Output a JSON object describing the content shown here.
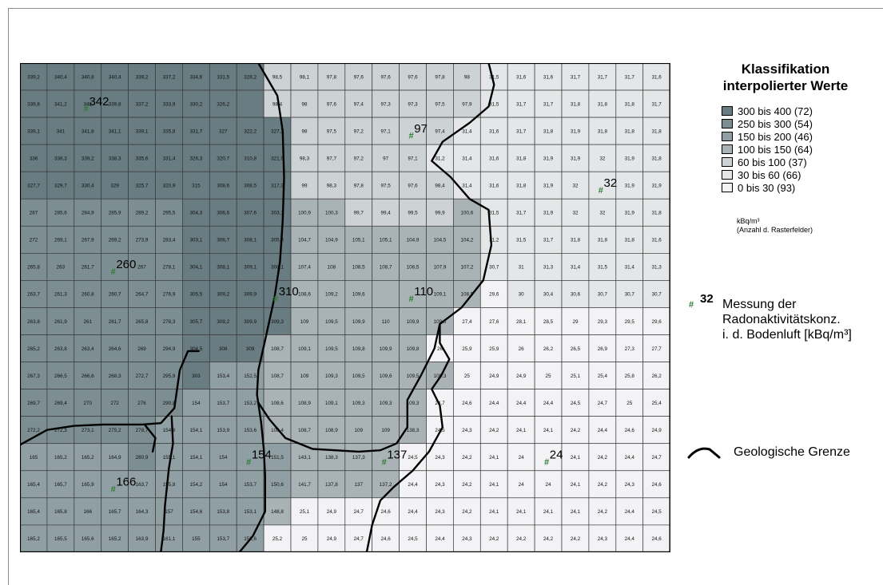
{
  "grid": {
    "values": [
      [
        "339,2",
        "340,4",
        "340,8",
        "340,4",
        "339,2",
        "337,2",
        "334,6",
        "331,5",
        "328,2",
        "98,5",
        "98,1",
        "97,8",
        "97,6",
        "97,6",
        "97,6",
        "97,8",
        "98",
        "31,5",
        "31,6",
        "31,6",
        "31,7",
        "31,7",
        "31,7",
        "31,6"
      ],
      [
        "339,8",
        "341,2",
        "342",
        "339,8",
        "337,2",
        "333,9",
        "330,2",
        "326,2",
        "",
        "98,4",
        "98",
        "97,6",
        "97,4",
        "97,3",
        "97,3",
        "97,5",
        "97,9",
        "31,5",
        "31,7",
        "31,7",
        "31,8",
        "31,8",
        "31,8",
        "31,7"
      ],
      [
        "339,1",
        "341",
        "341,8",
        "341,1",
        "339,1",
        "335,8",
        "331,7",
        "327",
        "322,2",
        "327,2",
        "98",
        "97,5",
        "97,2",
        "97,1",
        "",
        "97,4",
        "31,4",
        "31,6",
        "31,7",
        "31,8",
        "31,9",
        "31,8",
        "31,8",
        "31,8"
      ],
      [
        "336",
        "338,3",
        "339,2",
        "338,3",
        "335,6",
        "331,4",
        "326,3",
        "320,7",
        "310,8",
        "321,9",
        "98,3",
        "97,7",
        "97,2",
        "97",
        "97,1",
        "31,2",
        "31,4",
        "31,6",
        "31,8",
        "31,9",
        "31,9",
        "32",
        "31,9",
        "31,8"
      ],
      [
        "327,7",
        "329,7",
        "330,4",
        "329",
        "325,7",
        "320,9",
        "315",
        "308,6",
        "308,5",
        "317,3",
        "99",
        "98,3",
        "97,8",
        "97,5",
        "97,6",
        "98,4",
        "31,4",
        "31,6",
        "31,8",
        "31,9",
        "32",
        "",
        "31,9",
        "31,9"
      ],
      [
        "287",
        "285,6",
        "284,9",
        "285,9",
        "289,2",
        "295,5",
        "304,3",
        "306,6",
        "307,6",
        "303,1",
        "100,9",
        "100,3",
        "99,7",
        "99,4",
        "99,5",
        "99,9",
        "100,6",
        "31,5",
        "31,7",
        "31,9",
        "32",
        "32",
        "31,9",
        "31,8"
      ],
      [
        "272",
        "269,1",
        "267,9",
        "269,2",
        "273,9",
        "283,4",
        "303,1",
        "306,7",
        "308,1",
        "305,8",
        "104,7",
        "104,9",
        "105,1",
        "105,1",
        "104,9",
        "104,5",
        "104,2",
        "31,2",
        "31,5",
        "31,7",
        "31,8",
        "31,8",
        "31,8",
        "31,6"
      ],
      [
        "265,8",
        "263",
        "261,7",
        "",
        "267",
        "278,1",
        "304,1",
        "308,1",
        "309,1",
        "308,1",
        "107,4",
        "108",
        "108,5",
        "108,7",
        "108,5",
        "107,9",
        "107,2",
        "30,7",
        "31",
        "31,3",
        "31,4",
        "31,5",
        "31,4",
        "31,3"
      ],
      [
        "263,7",
        "261,3",
        "260,8",
        "260,7",
        "264,7",
        "276,9",
        "305,5",
        "309,2",
        "309,9",
        "",
        "108,6",
        "109,2",
        "109,6",
        "",
        "",
        "109,1",
        "108,5",
        "29,6",
        "30",
        "30,4",
        "30,6",
        "30,7",
        "30,7",
        "30,7"
      ],
      [
        "263,8",
        "261,9",
        "261",
        "261,7",
        "265,8",
        "278,3",
        "305,7",
        "309,2",
        "309,9",
        "309,3",
        "109",
        "109,5",
        "109,9",
        "110",
        "109,9",
        "109,5",
        "27,4",
        "27,6",
        "28,1",
        "28,5",
        "29",
        "29,3",
        "29,5",
        "29,6"
      ],
      [
        "265,2",
        "263,8",
        "263,4",
        "264,6",
        "269",
        "294,9",
        "304,5",
        "308",
        "309",
        "108,7",
        "109,1",
        "109,5",
        "109,8",
        "109,9",
        "109,8",
        "26",
        "25,9",
        "25,9",
        "26",
        "26,2",
        "26,5",
        "26,9",
        "27,3",
        "27,7"
      ],
      [
        "267,3",
        "266,5",
        "266,6",
        "268,3",
        "272,7",
        "295,9",
        "303",
        "153,4",
        "152,5",
        "108,7",
        "109",
        "109,3",
        "109,5",
        "109,6",
        "109,5",
        "109,3",
        "25",
        "24,9",
        "24,9",
        "25",
        "25,1",
        "25,4",
        "25,8",
        "26,2"
      ],
      [
        "269,7",
        "269,4",
        "270",
        "272",
        "276",
        "290,8",
        "154",
        "153,7",
        "153,2",
        "108,6",
        "108,9",
        "109,1",
        "109,3",
        "109,3",
        "109,3",
        "24,7",
        "24,6",
        "24,4",
        "24,4",
        "24,4",
        "24,5",
        "24,7",
        "25",
        "25,4"
      ],
      [
        "272,2",
        "272,3",
        "273,1",
        "275,2",
        "278,7",
        "154,8",
        "154,1",
        "153,9",
        "153,6",
        "108,4",
        "108,7",
        "108,9",
        "109",
        "109",
        "138,3",
        "24,5",
        "24,3",
        "24,2",
        "24,1",
        "24,1",
        "24,2",
        "24,4",
        "24,6",
        "24,9"
      ],
      [
        "165",
        "165,2",
        "165,2",
        "164,9",
        "280,9",
        "155,1",
        "154,1",
        "154",
        "",
        "151,5",
        "143,1",
        "138,3",
        "137,3",
        "",
        "24,5",
        "24,3",
        "24,2",
        "24,1",
        "24",
        "",
        "24,1",
        "24,2",
        "24,4",
        "24,7"
      ],
      [
        "165,4",
        "165,7",
        "165,9",
        "",
        "163,7",
        "155,8",
        "154,2",
        "154",
        "153,7",
        "150,6",
        "141,7",
        "137,8",
        "137",
        "137,2",
        "24,4",
        "24,3",
        "24,2",
        "24,1",
        "24",
        "24",
        "24,1",
        "24,2",
        "24,3",
        "24,6"
      ],
      [
        "165,4",
        "165,8",
        "166",
        "165,7",
        "164,3",
        "157",
        "154,6",
        "153,8",
        "153,1",
        "148,8",
        "25,1",
        "24,9",
        "24,7",
        "24,6",
        "24,4",
        "24,3",
        "24,2",
        "24,1",
        "24,1",
        "24,1",
        "24,1",
        "24,2",
        "24,4",
        "24,5"
      ],
      [
        "165,2",
        "165,5",
        "165,6",
        "165,2",
        "163,9",
        "161,1",
        "155",
        "153,7",
        "152,6",
        "25,2",
        "25",
        "24,9",
        "24,7",
        "24,6",
        "24,5",
        "24,4",
        "24,3",
        "24,2",
        "24,2",
        "24,2",
        "24,2",
        "24,3",
        "24,4",
        "24,6"
      ]
    ],
    "measurements": [
      {
        "value": "342",
        "row": 1,
        "col": 2
      },
      {
        "value": "97",
        "row": 2,
        "col": 14
      },
      {
        "value": "32",
        "row": 4,
        "col": 21
      },
      {
        "value": "260",
        "row": 7,
        "col": 3
      },
      {
        "value": "310",
        "row": 8,
        "col": 9
      },
      {
        "value": "110",
        "row": 8,
        "col": 14
      },
      {
        "value": "154",
        "row": 14,
        "col": 8
      },
      {
        "value": "137",
        "row": 14,
        "col": 13
      },
      {
        "value": "24",
        "row": 14,
        "col": 19
      },
      {
        "value": "166",
        "row": 15,
        "col": 3
      }
    ],
    "classes": [
      {
        "min": 300,
        "max": 400,
        "color": "#687c81"
      },
      {
        "min": 250,
        "max": 300,
        "color": "#7c8e92"
      },
      {
        "min": 150,
        "max": 200,
        "color": "#909fa3"
      },
      {
        "min": 100,
        "max": 150,
        "color": "#a9b3b6"
      },
      {
        "min": 60,
        "max": 100,
        "color": "#cdd3d5"
      },
      {
        "min": 30,
        "max": 60,
        "color": "#e4e6e8"
      },
      {
        "min": 0,
        "max": 30,
        "color": "#f3f3f5"
      }
    ],
    "marker_color": "#2e7d32"
  },
  "legend": {
    "title_line1": "Klassifikation",
    "title_line2": "interpolierter Werte",
    "items": [
      {
        "label": "300 bis 400  (72)",
        "color": "#687c81"
      },
      {
        "label": "250 bis 300  (54)",
        "color": "#7c8e92"
      },
      {
        "label": "150 bis 200  (46)",
        "color": "#909fa3"
      },
      {
        "label": "100 bis 150  (64)",
        "color": "#a9b3b6"
      },
      {
        "label": "60 bis 100  (37)",
        "color": "#cdd3d5"
      },
      {
        "label": "30 bis  60  (66)",
        "color": "#e4e6e8"
      },
      {
        "label": "0 bis  30  (93)",
        "color": "#f3f3f5"
      }
    ],
    "unit": "kBq/m³",
    "unit_note": "(Anzahl d. Rasterfelder)",
    "measurement_symbol": "#",
    "measurement_example": "32",
    "measurement_line1": "Messung der",
    "measurement_line2": "Radonaktivitätskonz.",
    "measurement_line3": "i. d. Bodenluft [kBq/m³]",
    "boundary_label": "Geologische Grenze"
  }
}
